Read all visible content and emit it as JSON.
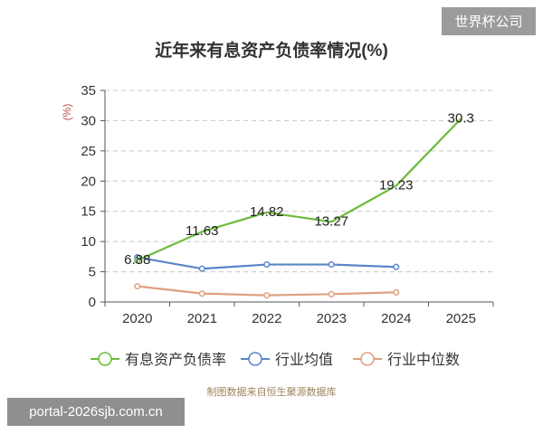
{
  "badge": "世界杯公司",
  "watermark": "portal-2026sjb.com.cn",
  "source": "制图数据来自恒生聚源数据库",
  "chart_data": {
    "type": "line",
    "title": "近年来有息资产负债率情况(%)",
    "ylabel": "(%)",
    "xlabel": "",
    "categories": [
      "2020",
      "2021",
      "2022",
      "2023",
      "2024",
      "2025"
    ],
    "ylim": [
      0,
      35
    ],
    "yticks": [
      "0",
      "5",
      "10",
      "15",
      "20",
      "25",
      "30",
      "35"
    ],
    "grid": "horizontal dashed",
    "legend_position": "bottom",
    "series": [
      {
        "name": "有息资产负债率",
        "color": "#6cbb3c",
        "values": [
          6.88,
          11.63,
          14.82,
          13.27,
          19.23,
          30.3
        ],
        "labels": [
          "6.88",
          "11.63",
          "14.82",
          "13.27",
          "19.23",
          "30.3"
        ]
      },
      {
        "name": "行业均值",
        "color": "#5b85c7",
        "values": [
          7.4,
          5.5,
          6.2,
          6.2,
          5.8,
          null
        ]
      },
      {
        "name": "行业中位数",
        "color": "#e0a080",
        "values": [
          2.6,
          1.4,
          1.1,
          1.3,
          1.6,
          null
        ]
      }
    ]
  }
}
